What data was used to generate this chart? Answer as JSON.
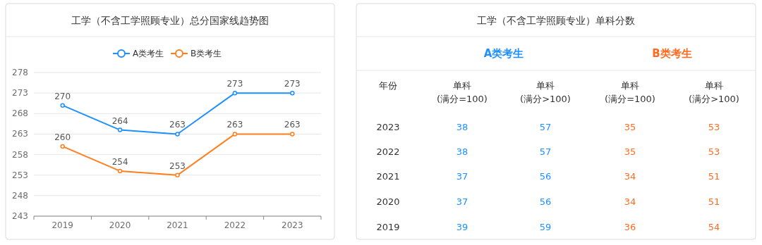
{
  "chart_data": [
    {
      "type": "line",
      "title": "工学（不含工学照顾专业）总分国家线趋势图",
      "categories": [
        "2019",
        "2020",
        "2021",
        "2022",
        "2023"
      ],
      "series": [
        {
          "name": "A类考生",
          "color": "#1e90ff",
          "values": [
            270,
            264,
            263,
            273,
            273
          ]
        },
        {
          "name": "B类考生",
          "color": "#ff7f1e",
          "values": [
            260,
            254,
            253,
            263,
            263
          ]
        }
      ],
      "ylim": [
        243,
        278
      ],
      "yticks": [
        243,
        248,
        253,
        258,
        263,
        268,
        273,
        278
      ],
      "grid": "y",
      "legend": "top",
      "marker": "circle",
      "data_labels": true
    },
    {
      "type": "heatmap",
      "title": "工学（不含工学照顾专业）单科分数",
      "ylabel": "年份",
      "annotations": [
        "A类考生",
        "B类考生"
      ],
      "categories": [
        "单科\n(满分=100)",
        "单科\n(满分>100)",
        "单科\n(满分=100)",
        "单科\n(满分>100)"
      ],
      "colors": [
        "#1e90ff",
        "#1e90ff",
        "#ff6a1e",
        "#ff6a1e"
      ],
      "y_categories": [
        "2023",
        "2022",
        "2021",
        "2020",
        "2019"
      ],
      "cells": [
        [
          38,
          57,
          35,
          53
        ],
        [
          38,
          57,
          35,
          53
        ],
        [
          37,
          56,
          34,
          51
        ],
        [
          37,
          56,
          34,
          51
        ],
        [
          39,
          59,
          36,
          54
        ]
      ],
      "data_labels": true
    }
  ]
}
